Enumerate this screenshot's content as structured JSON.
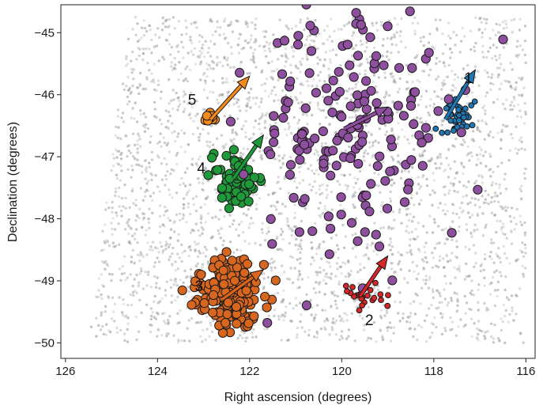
{
  "chart_data": {
    "type": "scatter",
    "xlabel": "Right ascension (degrees)",
    "ylabel": "Declination (degrees)",
    "xlim": [
      126.1,
      115.8
    ],
    "ylim": [
      -50.25,
      -44.55
    ],
    "xticks": [
      126,
      124,
      122,
      120,
      118,
      116
    ],
    "yticks": [
      -45,
      -46,
      -47,
      -48,
      -49,
      -50
    ],
    "xtick_labels": [
      "126",
      "124",
      "122",
      "120",
      "118",
      "116"
    ],
    "ytick_labels": [
      "−45",
      "−46",
      "−47",
      "−48",
      "−49",
      "−50"
    ],
    "grid": false,
    "background_field": {
      "description_color": "#9a9a9a",
      "ra_range": [
        125.5,
        116.0
      ],
      "dec_range": [
        -50.0,
        -44.75
      ],
      "count": 3200
    },
    "groups": [
      {
        "label": "1",
        "color": "#1f77b4",
        "center": [
          117.5,
          -46.35
        ],
        "spread": [
          0.18,
          0.15
        ],
        "marker": "small",
        "count": 45,
        "arrow": {
          "from": [
            117.75,
            -46.4
          ],
          "to": [
            117.1,
            -45.6
          ]
        },
        "label_pos": [
          117.25,
          -45.75
        ]
      },
      {
        "label": "2",
        "color": "#d62728",
        "center": [
          119.55,
          -49.25
        ],
        "spread": [
          0.18,
          0.09
        ],
        "marker": "small",
        "count": 25,
        "arrow": {
          "from": [
            119.6,
            -49.25
          ],
          "to": [
            119.0,
            -48.6
          ]
        },
        "label_pos": [
          119.4,
          -49.65
        ]
      },
      {
        "label": "3",
        "color": "#d9661f",
        "center": [
          122.4,
          -49.2
        ],
        "spread": [
          0.35,
          0.26
        ],
        "marker": "large",
        "count": 230,
        "arrow": {
          "from": [
            122.6,
            -49.3
          ],
          "to": [
            121.7,
            -48.82
          ]
        },
        "label_pos": [
          123.1,
          -49.1
        ]
      },
      {
        "label": "4",
        "color": "#1f9a3a",
        "center": [
          122.3,
          -47.4
        ],
        "spread": [
          0.25,
          0.2
        ],
        "marker": "large",
        "count": 75,
        "arrow": {
          "from": [
            122.35,
            -47.35
          ],
          "to": [
            121.7,
            -46.65
          ]
        },
        "label_pos": [
          123.05,
          -47.2
        ]
      },
      {
        "label": "5",
        "color": "#f28a1e",
        "center": [
          122.85,
          -46.38
        ],
        "spread": [
          0.1,
          0.05
        ],
        "marker": "large",
        "count": 12,
        "arrow": {
          "from": [
            122.85,
            -46.4
          ],
          "to": [
            122.0,
            -45.7
          ]
        },
        "label_pos": [
          123.25,
          -46.1
        ]
      },
      {
        "label": "",
        "color": "#8e4f9e",
        "center": [
          119.8,
          -46.6
        ],
        "spread": [
          1.1,
          0.9
        ],
        "marker": "large",
        "count": 175,
        "arrow": {
          "from": [
            119.95,
            -46.55
          ],
          "to": [
            119.0,
            -46.2
          ]
        },
        "label_pos": null
      }
    ]
  }
}
